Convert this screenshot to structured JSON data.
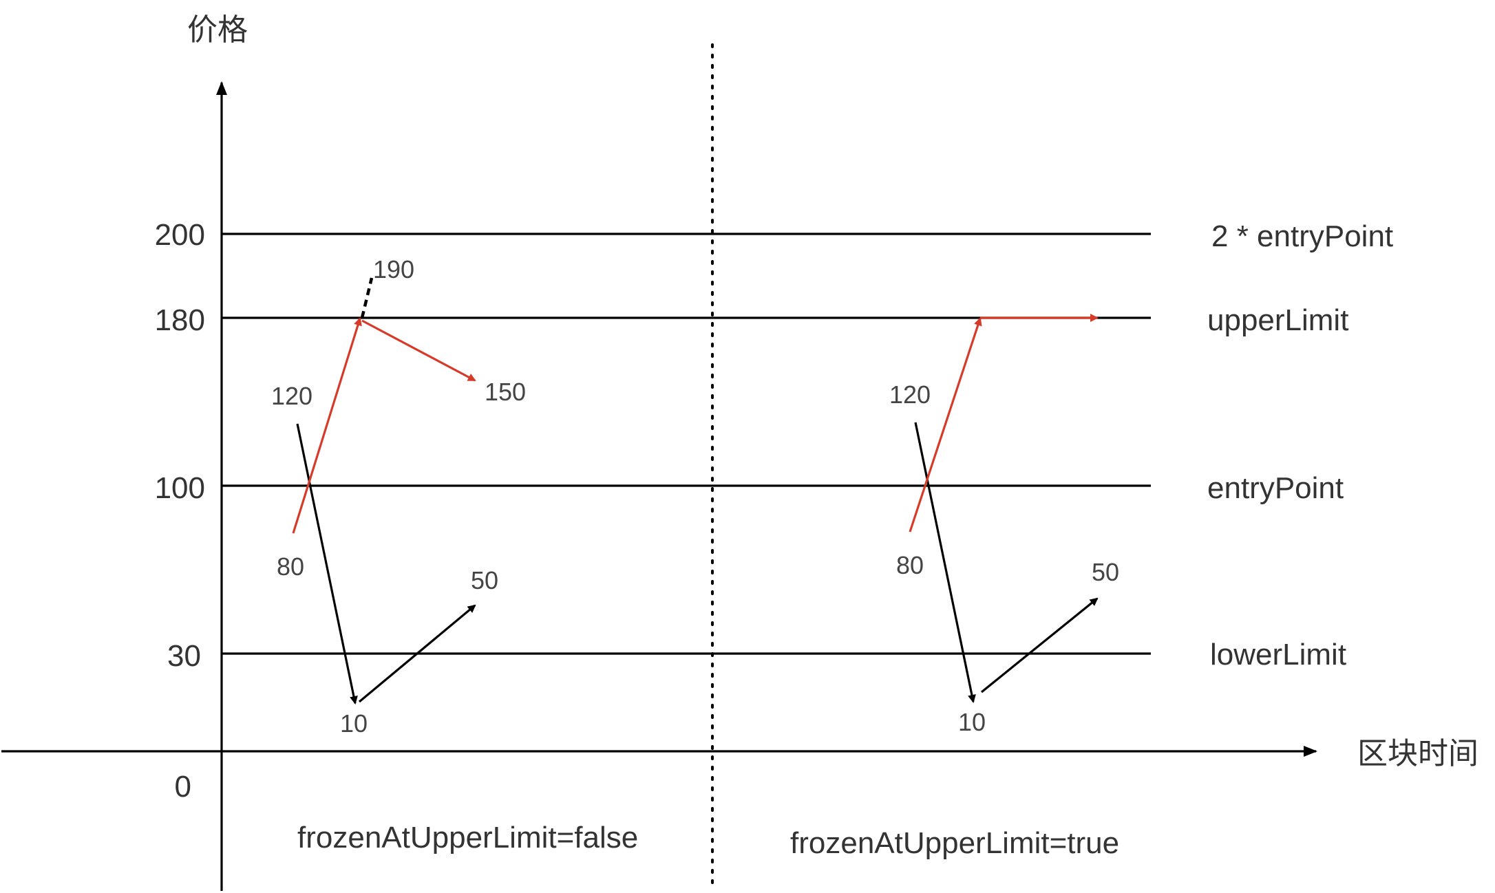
{
  "axes": {
    "y_title": "价格",
    "x_title": "区块时间",
    "y_ticks": [
      "200",
      "180",
      "100",
      "30",
      "0"
    ]
  },
  "levels": [
    "2 * entryPoint",
    "upperLimit",
    "entryPoint",
    "lowerLimit"
  ],
  "panels": [
    {
      "caption": "frozenAtUpperLimit=false",
      "labels": {
        "p120": "120",
        "p80": "80",
        "p10": "10",
        "p50": "50",
        "p190": "190",
        "p150": "150"
      }
    },
    {
      "caption": "frozenAtUpperLimit=true",
      "labels": {
        "p120": "120",
        "p80": "80",
        "p10": "10",
        "p50": "50"
      }
    }
  ],
  "colors": {
    "red_path": "#d63b2a",
    "black_path": "#000000"
  }
}
